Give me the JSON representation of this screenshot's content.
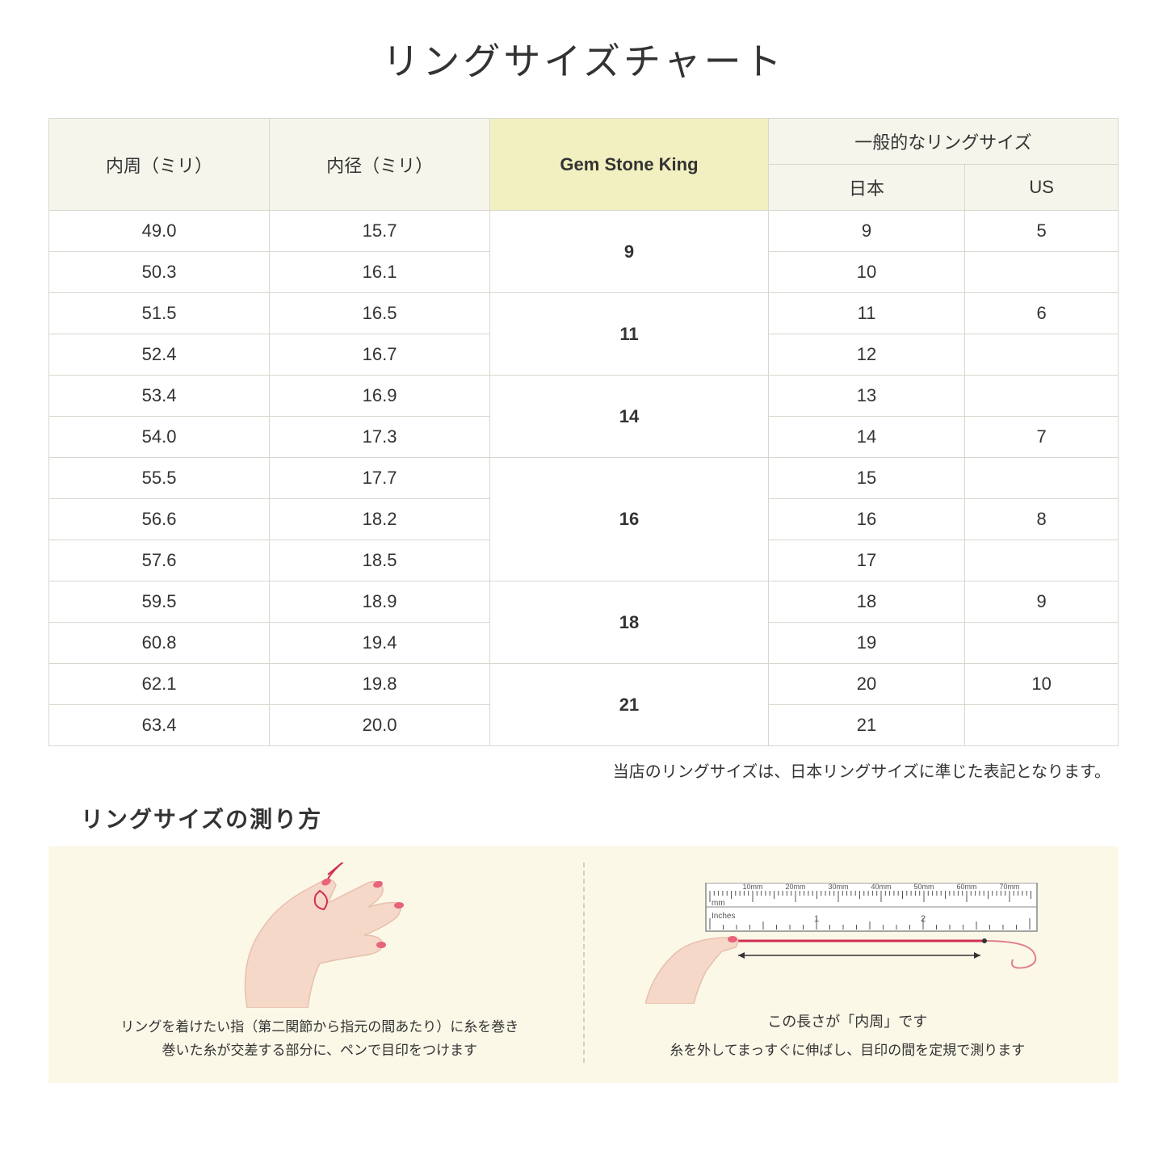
{
  "title": "リングサイズチャート",
  "headers": {
    "circumference": "内周（ミリ）",
    "diameter": "内径（ミリ）",
    "gsk": "Gem Stone King",
    "general": "一般的なリングサイズ",
    "japan": "日本",
    "us": "US"
  },
  "groups": [
    {
      "gsk": "9",
      "rows": [
        {
          "circ": "49.0",
          "dia": "15.7",
          "jp": "9",
          "us": "5"
        },
        {
          "circ": "50.3",
          "dia": "16.1",
          "jp": "10",
          "us": ""
        }
      ]
    },
    {
      "gsk": "11",
      "rows": [
        {
          "circ": "51.5",
          "dia": "16.5",
          "jp": "11",
          "us": "6"
        },
        {
          "circ": "52.4",
          "dia": "16.7",
          "jp": "12",
          "us": ""
        }
      ]
    },
    {
      "gsk": "14",
      "rows": [
        {
          "circ": "53.4",
          "dia": "16.9",
          "jp": "13",
          "us": ""
        },
        {
          "circ": "54.0",
          "dia": "17.3",
          "jp": "14",
          "us": "7"
        }
      ]
    },
    {
      "gsk": "16",
      "rows": [
        {
          "circ": "55.5",
          "dia": "17.7",
          "jp": "15",
          "us": ""
        },
        {
          "circ": "56.6",
          "dia": "18.2",
          "jp": "16",
          "us": "8"
        },
        {
          "circ": "57.6",
          "dia": "18.5",
          "jp": "17",
          "us": ""
        }
      ]
    },
    {
      "gsk": "18",
      "rows": [
        {
          "circ": "59.5",
          "dia": "18.9",
          "jp": "18",
          "us": "9"
        },
        {
          "circ": "60.8",
          "dia": "19.4",
          "jp": "19",
          "us": ""
        }
      ]
    },
    {
      "gsk": "21",
      "rows": [
        {
          "circ": "62.1",
          "dia": "19.8",
          "jp": "20",
          "us": "10"
        },
        {
          "circ": "63.4",
          "dia": "20.0",
          "jp": "21",
          "us": ""
        }
      ]
    }
  ],
  "note": "当店のリングサイズは、日本リングサイズに準じた表記となります。",
  "howto": {
    "title": "リングサイズの測り方",
    "left_caption_1": "リングを着けたい指（第二関節から指元の間あたり）に糸を巻き",
    "left_caption_2": "巻いた糸が交差する部分に、ペンで目印をつけます",
    "right_label_pre": "この長さが",
    "right_label_em": "「内周」",
    "right_label_post": "です",
    "right_caption": "糸を外してまっすぐに伸ばし、目印の間を定規で測ります",
    "ruler": {
      "mm_label": "mm",
      "inches_label": "Inches",
      "mm_ticks": [
        "10mm",
        "20mm",
        "30mm",
        "40mm",
        "50mm",
        "60mm",
        "70mm"
      ],
      "inch_ticks": [
        "1",
        "2"
      ]
    }
  },
  "colors": {
    "header_bg": "#f5f5ec",
    "highlight_bg": "#f2f0c0",
    "border": "#d8d8d0",
    "panel_bg": "#fbf8e8",
    "skin": "#f5d8c8",
    "skin_dark": "#e8c0ac",
    "nail": "#e8647a",
    "thread": "#d03050",
    "ruler_body": "#ffffff",
    "ruler_border": "#888888"
  }
}
